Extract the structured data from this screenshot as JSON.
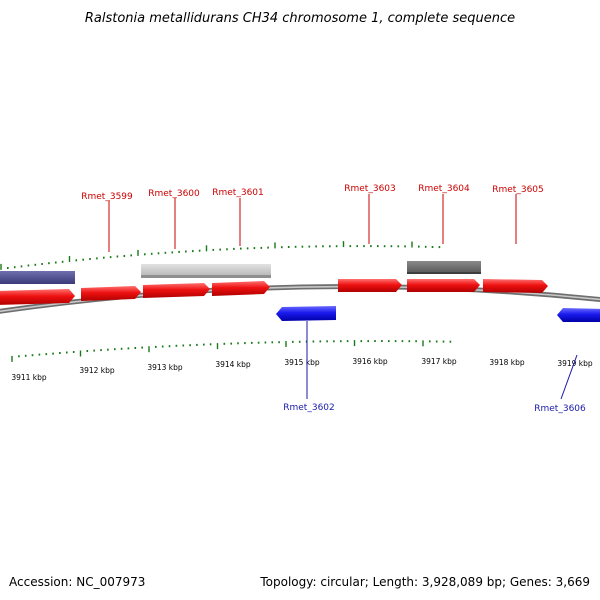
{
  "title": "Ralstonia metallidurans CH34 chromosome 1, complete sequence",
  "footer": {
    "accession": "Accession: NC_007973",
    "summary": "Topology: circular; Length: 3,928,089 bp; Genes: 3,669"
  },
  "colors": {
    "forward_gene": "#e8000b",
    "reverse_gene": "#1a1aee",
    "label_forward": "#cc0000",
    "label_reverse": "#1a1aaa",
    "tick": "#1a7a1a",
    "backbone": "#888888",
    "feature_purple": "#4a4a8a",
    "feature_lightgray": "#c4c4c4",
    "feature_darkgray": "#666666"
  },
  "ticks": [
    "3911 kbp",
    "3912 kbp",
    "3913 kbp",
    "3914 kbp",
    "3915 kbp",
    "3916 kbp",
    "3917 kbp",
    "3918 kbp",
    "3919 kbp"
  ],
  "gene_labels": [
    {
      "name": "Rmet_3599",
      "strand": "forward"
    },
    {
      "name": "Rmet_3600",
      "strand": "forward"
    },
    {
      "name": "Rmet_3601",
      "strand": "forward"
    },
    {
      "name": "Rmet_3602",
      "strand": "reverse"
    },
    {
      "name": "Rmet_3603",
      "strand": "forward"
    },
    {
      "name": "Rmet_3604",
      "strand": "forward"
    },
    {
      "name": "Rmet_3605",
      "strand": "forward"
    },
    {
      "name": "Rmet_3606",
      "strand": "reverse"
    }
  ]
}
